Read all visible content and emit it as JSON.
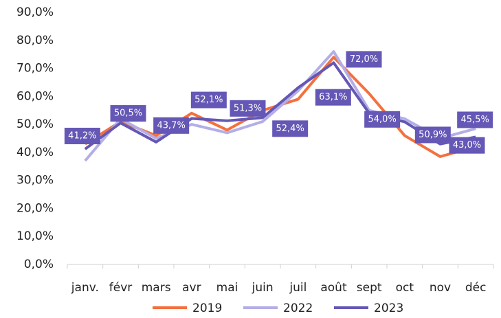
{
  "chart_data": {
    "type": "line",
    "categories": [
      "janv.",
      "févr",
      "mars",
      "avr",
      "mai",
      "juin",
      "juil",
      "août",
      "sept",
      "oct",
      "nov",
      "déc"
    ],
    "series": [
      {
        "name": "2019",
        "color": "#f4703f",
        "values": [
          43,
          51,
          46,
          54,
          48,
          55,
          59,
          74,
          61,
          46,
          38.5,
          42
        ]
      },
      {
        "name": "2022",
        "color": "#b3aee6",
        "values": [
          37,
          52,
          45,
          50,
          47,
          51,
          62,
          76,
          55,
          52,
          45,
          48.5
        ]
      },
      {
        "name": "2023",
        "color": "#6457b5",
        "values": [
          41.2,
          50.5,
          43.7,
          52.1,
          51.3,
          52.4,
          63.1,
          72.0,
          54.0,
          50.9,
          43.0,
          45.5
        ],
        "value_labels": [
          "41,2%",
          "50,5%",
          "43,7%",
          "52,1%",
          "51,3%",
          "52,4%",
          "63,1%",
          "72,0%",
          "54,0%",
          "50,9%",
          "43,0%",
          "45,5%"
        ]
      }
    ],
    "ylim": [
      0,
      90
    ],
    "yticks": [
      {
        "value": 0,
        "label": "0,0%"
      },
      {
        "value": 10,
        "label": "10,0%"
      },
      {
        "value": 20,
        "label": "20,0%"
      },
      {
        "value": 30,
        "label": "30,0%"
      },
      {
        "value": 40,
        "label": "40,0%"
      },
      {
        "value": 50,
        "label": "50,0%"
      },
      {
        "value": 60,
        "label": "60,0%"
      },
      {
        "value": 70,
        "label": "70,0%"
      },
      {
        "value": 80,
        "label": "80,0%"
      },
      {
        "value": 90,
        "label": "90,0%"
      }
    ],
    "legend": "bottom"
  }
}
